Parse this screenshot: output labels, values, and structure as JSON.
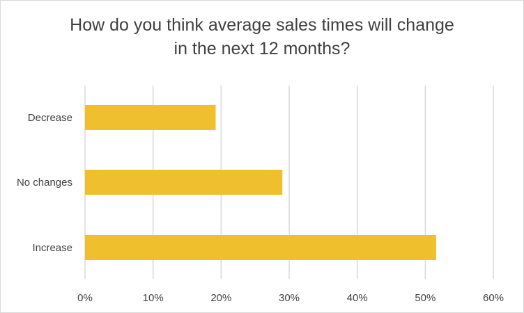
{
  "chart_data": {
    "type": "bar",
    "orientation": "horizontal",
    "title_lines": [
      "How do you think average sales times will change",
      "in the next 12 months?"
    ],
    "categories": [
      "Decrease",
      "No changes",
      "Increase"
    ],
    "values": [
      19.2,
      29,
      51.6
    ],
    "xlim": [
      0,
      60
    ],
    "x_ticks": [
      "0%",
      "10%",
      "20%",
      "30%",
      "40%",
      "50%",
      "60%"
    ],
    "x_tick_values": [
      0,
      10,
      20,
      30,
      40,
      50,
      60
    ],
    "grid": true,
    "legend": "none",
    "colors": {
      "bar": "#f0bf2d",
      "grid": "#d9d9d9",
      "text": "#404040"
    }
  }
}
